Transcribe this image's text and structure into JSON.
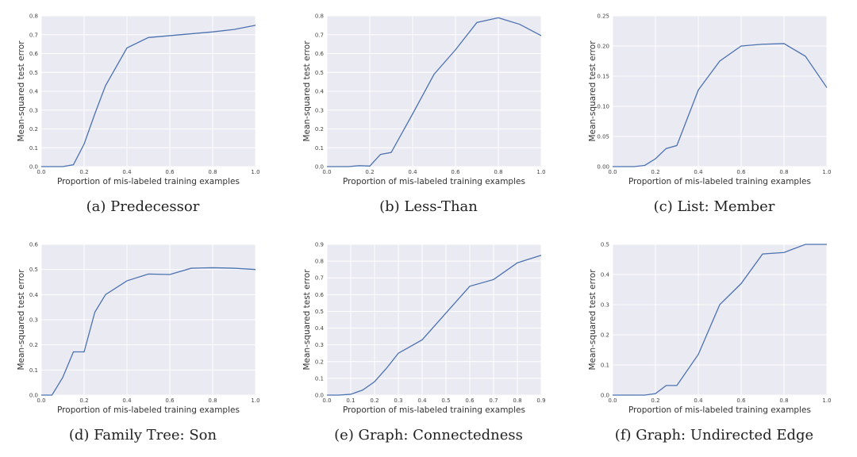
{
  "chart_data": [
    {
      "type": "line",
      "caption": "(a) Predecessor",
      "xlabel": "Proportion of mis-labeled training examples",
      "ylabel": "Mean-squared test error",
      "xlim": [
        0.0,
        1.0
      ],
      "ylim": [
        0.0,
        0.8
      ],
      "xticks": [
        0.0,
        0.2,
        0.4,
        0.6,
        0.8,
        1.0
      ],
      "xtick_labels": [
        "0.0",
        "0.2",
        "0.4",
        "0.6",
        "0.8",
        "1.0"
      ],
      "yticks": [
        0.0,
        0.1,
        0.2,
        0.3,
        0.4,
        0.5,
        0.6,
        0.7,
        0.8
      ],
      "ytick_labels": [
        "0.0",
        "0.1",
        "0.2",
        "0.3",
        "0.4",
        "0.5",
        "0.6",
        "0.7",
        "0.8"
      ],
      "grid": true,
      "color": "#4c72b0",
      "x": [
        0.0,
        0.05,
        0.1,
        0.15,
        0.2,
        0.25,
        0.3,
        0.4,
        0.5,
        0.6,
        0.7,
        0.8,
        0.9,
        1.0
      ],
      "y": [
        0.0,
        0.0,
        0.0,
        0.01,
        0.12,
        0.28,
        0.43,
        0.63,
        0.685,
        0.695,
        0.705,
        0.715,
        0.728,
        0.75
      ]
    },
    {
      "type": "line",
      "caption": "(b) Less-Than",
      "xlabel": "Proportion of mis-labeled training examples",
      "ylabel": "Mean-squared test error",
      "xlim": [
        0.0,
        1.0
      ],
      "ylim": [
        0.0,
        0.8
      ],
      "xticks": [
        0.0,
        0.2,
        0.4,
        0.6,
        0.8,
        1.0
      ],
      "xtick_labels": [
        "0.0",
        "0.2",
        "0.4",
        "0.6",
        "0.8",
        "1.0"
      ],
      "yticks": [
        0.0,
        0.1,
        0.2,
        0.3,
        0.4,
        0.5,
        0.6,
        0.7,
        0.8
      ],
      "ytick_labels": [
        "0.0",
        "0.1",
        "0.2",
        "0.3",
        "0.4",
        "0.5",
        "0.6",
        "0.7",
        "0.8"
      ],
      "grid": true,
      "color": "#4c72b0",
      "x": [
        0.0,
        0.05,
        0.1,
        0.15,
        0.2,
        0.25,
        0.3,
        0.4,
        0.5,
        0.6,
        0.7,
        0.8,
        0.9,
        1.0
      ],
      "y": [
        0.0,
        0.0,
        0.0,
        0.005,
        0.003,
        0.065,
        0.075,
        0.28,
        0.49,
        0.62,
        0.765,
        0.79,
        0.755,
        0.695
      ]
    },
    {
      "type": "line",
      "caption": "(c) List: Member",
      "xlabel": "Proportion of mis-labeled training examples",
      "ylabel": "Mean-squared test error",
      "xlim": [
        0.0,
        1.0
      ],
      "ylim": [
        0.0,
        0.25
      ],
      "xticks": [
        0.0,
        0.2,
        0.4,
        0.6,
        0.8,
        1.0
      ],
      "xtick_labels": [
        "0.0",
        "0.2",
        "0.4",
        "0.6",
        "0.8",
        "1.0"
      ],
      "yticks": [
        0.0,
        0.05,
        0.1,
        0.15,
        0.2,
        0.25
      ],
      "ytick_labels": [
        "0.00",
        "0.05",
        "0.10",
        "0.15",
        "0.20",
        "0.25"
      ],
      "grid": true,
      "color": "#4c72b0",
      "x": [
        0.0,
        0.05,
        0.1,
        0.15,
        0.2,
        0.25,
        0.3,
        0.4,
        0.5,
        0.6,
        0.7,
        0.8,
        0.9,
        1.0
      ],
      "y": [
        0.0,
        0.0,
        0.0,
        0.002,
        0.013,
        0.03,
        0.035,
        0.127,
        0.175,
        0.2,
        0.203,
        0.204,
        0.183,
        0.131
      ]
    },
    {
      "type": "line",
      "caption": "(d) Family Tree: Son",
      "xlabel": "Proportion of mis-labeled training examples",
      "ylabel": "Mean-squared test error",
      "xlim": [
        0.0,
        1.0
      ],
      "ylim": [
        0.0,
        0.6
      ],
      "xticks": [
        0.0,
        0.2,
        0.4,
        0.6,
        0.8,
        1.0
      ],
      "xtick_labels": [
        "0.0",
        "0.2",
        "0.4",
        "0.6",
        "0.8",
        "1.0"
      ],
      "yticks": [
        0.0,
        0.1,
        0.2,
        0.3,
        0.4,
        0.5,
        0.6
      ],
      "ytick_labels": [
        "0.0",
        "0.1",
        "0.2",
        "0.3",
        "0.4",
        "0.5",
        "0.6"
      ],
      "grid": true,
      "color": "#4c72b0",
      "x": [
        0.0,
        0.05,
        0.1,
        0.15,
        0.2,
        0.25,
        0.3,
        0.4,
        0.5,
        0.6,
        0.7,
        0.8,
        0.9,
        1.0
      ],
      "y": [
        0.0,
        0.0,
        0.07,
        0.172,
        0.172,
        0.33,
        0.4,
        0.455,
        0.482,
        0.48,
        0.505,
        0.507,
        0.505,
        0.5
      ]
    },
    {
      "type": "line",
      "caption": "(e) Graph: Connectedness",
      "xlabel": "Proportion of mis-labeled training examples",
      "ylabel": "Mean-squared test error",
      "xlim": [
        0.0,
        0.9
      ],
      "ylim": [
        0.0,
        0.9
      ],
      "xticks": [
        0.0,
        0.1,
        0.2,
        0.3,
        0.4,
        0.5,
        0.6,
        0.7,
        0.8,
        0.9
      ],
      "xtick_labels": [
        "0.0",
        "0.1",
        "0.2",
        "0.3",
        "0.4",
        "0.5",
        "0.6",
        "0.7",
        "0.8",
        "0.9"
      ],
      "yticks": [
        0.0,
        0.1,
        0.2,
        0.3,
        0.4,
        0.5,
        0.6,
        0.7,
        0.8,
        0.9
      ],
      "ytick_labels": [
        "0.0",
        "0.1",
        "0.2",
        "0.3",
        "0.4",
        "0.5",
        "0.6",
        "0.7",
        "0.8",
        "0.9"
      ],
      "grid": true,
      "color": "#4c72b0",
      "x": [
        0.0,
        0.05,
        0.1,
        0.15,
        0.2,
        0.25,
        0.3,
        0.4,
        0.5,
        0.6,
        0.7,
        0.8,
        0.9
      ],
      "y": [
        0.0,
        0.0,
        0.005,
        0.03,
        0.08,
        0.16,
        0.25,
        0.33,
        0.49,
        0.65,
        0.69,
        0.79,
        0.835
      ]
    },
    {
      "type": "line",
      "caption": "(f) Graph: Undirected Edge",
      "xlabel": "Proportion of mis-labeled training examples",
      "ylabel": "Mean-squared test error",
      "xlim": [
        0.0,
        1.0
      ],
      "ylim": [
        0.0,
        0.5
      ],
      "xticks": [
        0.0,
        0.2,
        0.4,
        0.6,
        0.8,
        1.0
      ],
      "xtick_labels": [
        "0.0",
        "0.2",
        "0.4",
        "0.6",
        "0.8",
        "1.0"
      ],
      "yticks": [
        0.0,
        0.1,
        0.2,
        0.3,
        0.4,
        0.5
      ],
      "ytick_labels": [
        "0.0",
        "0.1",
        "0.2",
        "0.3",
        "0.4",
        "0.5"
      ],
      "grid": true,
      "color": "#4c72b0",
      "x": [
        0.0,
        0.05,
        0.1,
        0.15,
        0.2,
        0.25,
        0.3,
        0.4,
        0.5,
        0.6,
        0.7,
        0.8,
        0.9,
        1.0
      ],
      "y": [
        0.0,
        0.0,
        0.0,
        0.0,
        0.005,
        0.032,
        0.032,
        0.135,
        0.3,
        0.37,
        0.468,
        0.473,
        0.5,
        0.5
      ]
    }
  ]
}
